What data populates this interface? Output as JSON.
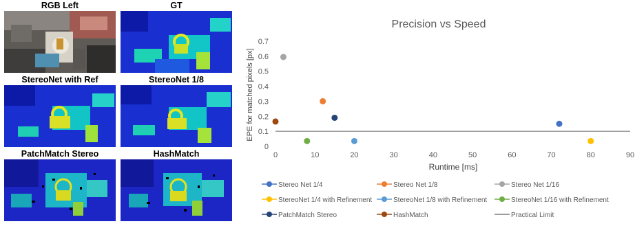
{
  "panels": [
    {
      "title": "RGB Left",
      "kind": "rgb"
    },
    {
      "title": "GT",
      "kind": "depth"
    },
    {
      "title": "StereoNet with Ref",
      "kind": "depth"
    },
    {
      "title": "StereoNet 1/8",
      "kind": "depth"
    },
    {
      "title": "PatchMatch Stereo",
      "kind": "sparse"
    },
    {
      "title": "HashMatch",
      "kind": "sparse"
    }
  ],
  "chart_data": {
    "type": "scatter",
    "title": "Precision vs Speed",
    "xlabel": "Runtime [ms]",
    "ylabel": "EPE for matched pixels [px]",
    "xlim": [
      0,
      90
    ],
    "ylim": [
      0,
      0.7
    ],
    "xticks": [
      "0",
      "10",
      "20",
      "30",
      "40",
      "50",
      "60",
      "70",
      "80",
      "90"
    ],
    "yticks": [
      "0",
      "0.1",
      "0.2",
      "0.3",
      "0.4",
      "0.5",
      "0.6",
      "0.7"
    ],
    "grid": false,
    "legend_position": "bottom",
    "series": [
      {
        "name": "Stereo Net 1/4",
        "color": "#4472C4",
        "x": 72,
        "y": 0.15
      },
      {
        "name": "Stereo Net 1/8",
        "color": "#ED7D31",
        "x": 12,
        "y": 0.3
      },
      {
        "name": "Stereo Net 1/16",
        "color": "#A5A5A5",
        "x": 2,
        "y": 0.595
      },
      {
        "name": "StereoNet 1/4 with Refinement",
        "color": "#FFC000",
        "x": 80,
        "y": 0.035
      },
      {
        "name": "StereoNet 1/8 with Refinement",
        "color": "#5B9BD5",
        "x": 20,
        "y": 0.035
      },
      {
        "name": "StereoNet 1/16 with Refinement",
        "color": "#70AD47",
        "x": 8,
        "y": 0.035
      },
      {
        "name": "PatchMatch Stereo",
        "color": "#264478",
        "x": 15,
        "y": 0.19
      },
      {
        "name": "HashMatch",
        "color": "#9E480E",
        "x": 0,
        "y": 0.165
      }
    ],
    "reference_line": {
      "name": "Practical Limit",
      "y": 0.1,
      "color": "#7F7F7F"
    }
  }
}
